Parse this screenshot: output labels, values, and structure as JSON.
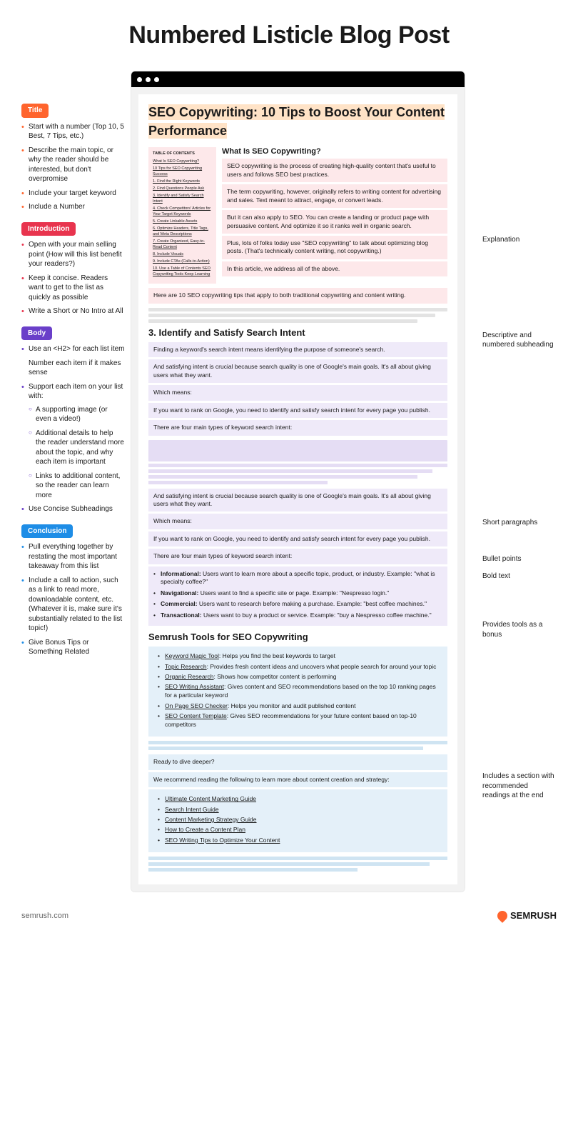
{
  "page_title": "Numbered Listicle Blog Post",
  "colors": {
    "title_tag": "#ff642d",
    "intro_tag": "#e8344e",
    "body_tag": "#6a3fc9",
    "conc_tag": "#1e8de6",
    "title_highlight": "#ffe3c7",
    "pink_bg": "#fde8ea",
    "purple_bg": "#efeaf9",
    "blue_bg": "#e4f0f9",
    "magenta_line": "#e7298a"
  },
  "left": {
    "title": {
      "tag": "Title",
      "bullets": [
        "Start with a number (Top 10, 5 Best, 7 Tips, etc.)",
        "Describe the main topic, or why the reader should be interested, but don't overpromise",
        "Include your target keyword",
        "Include a Number"
      ]
    },
    "intro": {
      "tag": "Introduction",
      "bullets": [
        "Open with your main selling point (How will this list benefit your readers?)",
        "Keep it concise. Readers want to get to the list as quickly as possible",
        "Write a Short or No Intro at All"
      ]
    },
    "body": {
      "tag": "Body",
      "bullets": [
        "Use an <H2> for each list item",
        "Number each item if it makes sense",
        "Support each item on your list with:",
        "Use Concise Subheadings"
      ],
      "sub_bullets": [
        "A supporting image (or even a video!)",
        "Additional details to help the reader understand more about the topic, and why each item is important",
        "Links to additional content, so the reader can learn more"
      ]
    },
    "conc": {
      "tag": "Conclusion",
      "bullets": [
        "Pull everything together by restating the most important takeaway from this list",
        "Include a call to action, such as a link to read more, downloadable content, etc. (Whatever it is, make sure it's substantially related to the list topic!)",
        "Give Bonus Tips or Something Related"
      ]
    }
  },
  "right": {
    "notes": [
      "Explanation",
      "Descriptive and numbered subheading",
      "Short paragraphs",
      "Bullet points",
      "Bold text",
      "Provides tools as a bonus",
      "Includes a section with recommended readings at the end"
    ]
  },
  "article": {
    "title": "SEO Copywriting: 10 Tips to Boost Your Content Performance",
    "toc_heading": "TABLE OF CONTENTS",
    "toc": [
      "What Is SEO Copywriting?",
      "10 Tips for SEO Copywriting Success",
      "1. Find the Right Keywords",
      "2. Find Questions People Ask",
      "3. Identify and Satisfy Search Intent",
      "4. Check Competitors' Articles for Your Target Keywords",
      "5. Create Linkable Assets",
      "6. Optimize Headers, Title Tags, and Meta Descriptions",
      "7. Create Organized, Easy-to-Read Content",
      "8. Include Visuals",
      "9. Include CTAs (Calls-to-Action)",
      "10. Use a Table of Contents SEO Copywriting Tools Keep Learning"
    ],
    "intro_heading": "What Is SEO Copywriting?",
    "intro_paras": [
      "SEO copywriting is the process of creating high-quality content that's useful to users and follows SEO best practices.",
      "The term copywriting, however, originally refers to writing content for advertising and sales. Text meant to attract, engage, or convert leads.",
      "But it can also apply to SEO. You can create a landing or product page with persuasive content. And optimize it so it ranks well in organic search.",
      "Plus, lots of folks today use \"SEO copywriting\" to talk about optimizing blog posts. (That's technically content writing, not copywriting.)",
      "In this article, we address all of the above."
    ],
    "bridge": "Here are 10 SEO copywriting tips that apply to both traditional copywriting and content writing.",
    "body_heading": "3. Identify and Satisfy Search Intent",
    "body_paras_1": [
      "Finding a keyword's search intent means identifying the purpose of someone's search.",
      "And satisfying intent is crucial because search quality is one of Google's main goals. It's all about giving users what they want.",
      "Which means:",
      "If you want to rank on Google, you need to identify and satisfy search intent for every page you publish.",
      "There are four main types of keyword search intent:"
    ],
    "body_paras_2": [
      "And satisfying intent is crucial because search quality is one of Google's main goals. It's all about giving users what they want.",
      "Which means:",
      "If you want to rank on Google, you need to identify and satisfy search intent for every page you publish.",
      "There are four main types of keyword search intent:"
    ],
    "intent_types": [
      {
        "b": "Informational:",
        "t": " Users want to learn more about a specific topic, product, or industry. Example: \"what is specialty coffee?\""
      },
      {
        "b": "Navigational:",
        "t": " Users want to find a specific site or page. Example: \"Nespresso login.\""
      },
      {
        "b": "Commercial:",
        "t": " Users want to research before making a purchase. Example: \"best coffee machines.\""
      },
      {
        "b": "Transactional:",
        "t": " Users want to buy a product or service. Example: \"buy a Nespresso coffee machine.\""
      }
    ],
    "conc_heading": "Semrush Tools for SEO Copywriting",
    "tools": [
      {
        "u": "Keyword Magic Tool",
        "t": ": Helps you find the best keywords to target"
      },
      {
        "u": "Topic Research",
        "t": ": Provides fresh content ideas and uncovers what people search for around your topic"
      },
      {
        "u": "Organic Research",
        "t": ": Shows how competitor content is performing"
      },
      {
        "u": "SEO Writing Assistant",
        "t": ": Gives content and SEO recommendations based on the top 10 ranking pages for a particular keyword"
      },
      {
        "u": "On Page SEO Checker",
        "t": ": Helps you monitor and audit published content"
      },
      {
        "u": "SEO Content Template",
        "t": ": Gives SEO recommendations for your future content based on top-10 competitors"
      }
    ],
    "dive": "Ready to dive deeper?",
    "rec_intro": "We recommend reading the following to learn more about content creation and strategy:",
    "readings": [
      "Ultimate Content Marketing Guide",
      "Search Intent Guide",
      "Content Marketing Strategy Guide",
      "How to Create a Content Plan",
      "SEO Writing Tips to Optimize Your Content"
    ]
  },
  "footer": {
    "domain": "semrush.com",
    "brand": "SEMRUSH"
  }
}
